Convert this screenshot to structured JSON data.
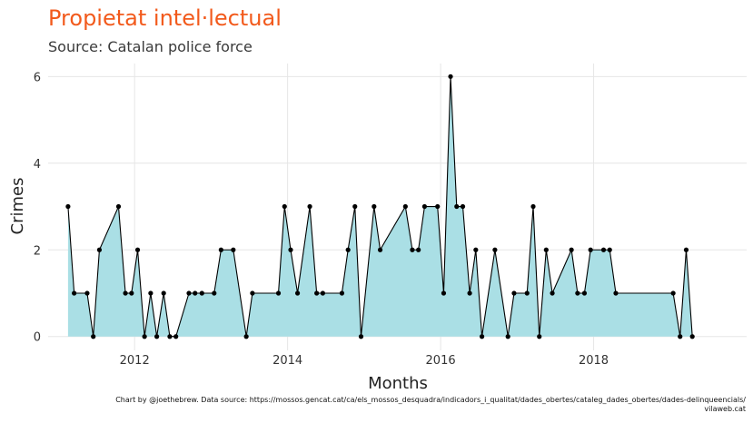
{
  "title": "Propietat intel·lectual",
  "subtitle": "Source: Catalan police force",
  "caption_line1": "Chart by @joethebrew. Data source: https://mossos.gencat.cat/ca/els_mossos_desquadra/indicadors_i_qualitat/dades_obertes/cataleg_dades_obertes/dades-delinqueencials/",
  "caption_line2": "vilaweb.cat",
  "colors": {
    "title": "#f25a1c",
    "area": "#aadfe5",
    "line": "#000000",
    "point": "#000000",
    "grid": "#e6e6e6"
  },
  "chart_data": {
    "type": "area",
    "xlabel": "Months",
    "ylabel": "Crimes",
    "xlim": [
      2010.87,
      2020.0
    ],
    "ylim": [
      -0.32,
      6.3
    ],
    "x_ticks": [
      2012,
      2014,
      2016,
      2018
    ],
    "x_tick_labels": [
      "2012",
      "2014",
      "2016",
      "2018"
    ],
    "y_ticks": [
      0,
      2,
      4,
      6
    ],
    "y_tick_labels": [
      "0",
      "2",
      "4",
      "6"
    ],
    "grid": true,
    "series": [
      {
        "points": [
          [
            2011.13,
            3
          ],
          [
            2011.21,
            1
          ],
          [
            2011.38,
            1
          ],
          [
            2011.46,
            0
          ],
          [
            2011.54,
            2
          ],
          [
            2011.79,
            3
          ],
          [
            2011.88,
            1
          ],
          [
            2011.96,
            1
          ],
          [
            2012.04,
            2
          ],
          [
            2012.13,
            0
          ],
          [
            2012.21,
            1
          ],
          [
            2012.29,
            0
          ],
          [
            2012.38,
            1
          ],
          [
            2012.46,
            0
          ],
          [
            2012.54,
            0
          ],
          [
            2012.71,
            1
          ],
          [
            2012.79,
            1
          ],
          [
            2012.88,
            1
          ],
          [
            2013.04,
            1
          ],
          [
            2013.13,
            2
          ],
          [
            2013.29,
            2
          ],
          [
            2013.46,
            0
          ],
          [
            2013.54,
            1
          ],
          [
            2013.88,
            1
          ],
          [
            2013.96,
            3
          ],
          [
            2014.04,
            2
          ],
          [
            2014.13,
            1
          ],
          [
            2014.29,
            3
          ],
          [
            2014.38,
            1
          ],
          [
            2014.46,
            1
          ],
          [
            2014.71,
            1
          ],
          [
            2014.79,
            2
          ],
          [
            2014.88,
            3
          ],
          [
            2014.96,
            0
          ],
          [
            2015.13,
            3
          ],
          [
            2015.21,
            2
          ],
          [
            2015.54,
            3
          ],
          [
            2015.63,
            2
          ],
          [
            2015.71,
            2
          ],
          [
            2015.79,
            3
          ],
          [
            2015.96,
            3
          ],
          [
            2016.04,
            1
          ],
          [
            2016.13,
            6
          ],
          [
            2016.21,
            3
          ],
          [
            2016.29,
            3
          ],
          [
            2016.38,
            1
          ],
          [
            2016.46,
            2
          ],
          [
            2016.54,
            0
          ],
          [
            2016.71,
            2
          ],
          [
            2016.88,
            0
          ],
          [
            2016.96,
            1
          ],
          [
            2017.13,
            1
          ],
          [
            2017.21,
            3
          ],
          [
            2017.29,
            0
          ],
          [
            2017.38,
            2
          ],
          [
            2017.46,
            1
          ],
          [
            2017.71,
            2
          ],
          [
            2017.79,
            1
          ],
          [
            2017.88,
            1
          ],
          [
            2017.96,
            2
          ],
          [
            2018.13,
            2
          ],
          [
            2018.21,
            2
          ],
          [
            2018.29,
            1
          ],
          [
            2019.04,
            1
          ],
          [
            2019.13,
            0
          ],
          [
            2019.21,
            2
          ],
          [
            2019.29,
            0
          ]
        ]
      }
    ]
  }
}
